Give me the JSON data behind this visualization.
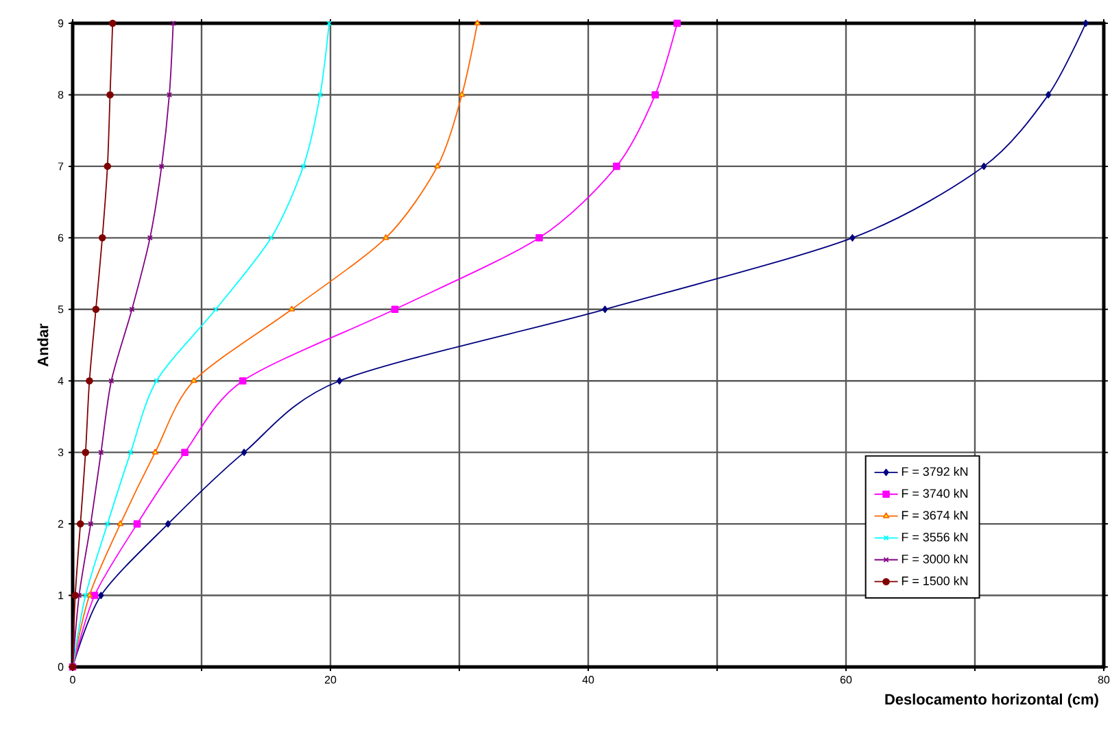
{
  "chart_data": {
    "type": "line",
    "xlabel": "Deslocamento horizontal (cm)",
    "ylabel": "Andar",
    "xlim": [
      0,
      80
    ],
    "xticks": [
      0,
      {
        "value": 10,
        "label": null
      },
      20,
      {
        "value": 30,
        "label": null
      },
      40,
      {
        "value": 50,
        "label": null
      },
      60,
      {
        "value": 70,
        "label": null
      },
      80
    ],
    "ylim": [
      0,
      9
    ],
    "yticks": [
      0,
      1,
      2,
      3,
      4,
      5,
      6,
      7,
      8,
      9
    ],
    "grid": true,
    "legend": "bottom right",
    "line_style": "solid",
    "series": [
      {
        "name": "F = 3792 kN",
        "color": "#000080",
        "marker": "diamond",
        "x": [
          0,
          2.2,
          7.4,
          13.3,
          20.7,
          41.3,
          60.5,
          70.7,
          75.7,
          78.6
        ],
        "values": [
          0,
          1,
          2,
          3,
          4,
          5,
          6,
          7,
          8,
          9
        ]
      },
      {
        "name": "F = 3740 kN",
        "color": "#ff00ff",
        "marker": "square",
        "x": [
          0,
          1.7,
          5.0,
          8.7,
          13.2,
          25.0,
          36.2,
          42.2,
          45.2,
          46.9
        ],
        "values": [
          0,
          1,
          2,
          3,
          4,
          5,
          6,
          7,
          8,
          9
        ]
      },
      {
        "name": "F = 3674 kN",
        "color": "#ff6600",
        "marker": "triangle",
        "x": [
          0,
          1.3,
          3.7,
          6.4,
          9.4,
          17.0,
          24.3,
          28.3,
          30.2,
          31.4
        ],
        "values": [
          0,
          1,
          2,
          3,
          4,
          5,
          6,
          7,
          8,
          9
        ]
      },
      {
        "name": "F = 3556 kN",
        "color": "#00ffff",
        "marker": "cross",
        "x": [
          0,
          1.0,
          2.7,
          4.5,
          6.5,
          11.1,
          15.4,
          17.9,
          19.2,
          19.9
        ],
        "values": [
          0,
          1,
          2,
          3,
          4,
          5,
          6,
          7,
          8,
          9
        ]
      },
      {
        "name": "F = 3000 kN",
        "color": "#800080",
        "marker": "cross",
        "x": [
          0,
          0.5,
          1.4,
          2.2,
          3.0,
          4.6,
          6.0,
          6.9,
          7.5,
          7.8
        ],
        "values": [
          0,
          1,
          2,
          3,
          4,
          5,
          6,
          7,
          8,
          9
        ]
      },
      {
        "name": "F = 1500 kN",
        "color": "#800000",
        "marker": "circle",
        "x": [
          0,
          0.2,
          0.6,
          1.0,
          1.3,
          1.8,
          2.3,
          2.7,
          2.9,
          3.1
        ],
        "values": [
          0,
          1,
          2,
          3,
          4,
          5,
          6,
          7,
          8,
          9
        ]
      }
    ]
  }
}
